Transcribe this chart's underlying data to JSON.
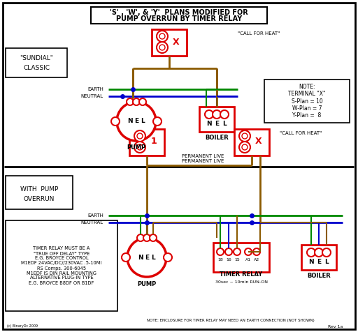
{
  "title_line1": "'S' , 'W', & 'Y'  PLANS MODIFIED FOR",
  "title_line2": "PUMP OVERRUN BY TIMER RELAY",
  "bg_color": "#ffffff",
  "border_color": "#000000",
  "red_color": "#dd0000",
  "green_color": "#008800",
  "blue_color": "#0000cc",
  "brown_color": "#8B5A00",
  "label_sundial": "\"SUNDIAL\"\nCLASSIC",
  "label_pump_overrun": "WITH  PUMP\nOVERRUN",
  "note_text": "NOTE:\nTERMINAL \"X\"\nS-Plan = 10\nW-Plan = 7\nY-Plan =  8",
  "timer_note": "TIMER RELAY MUST BE A\n\"TRUE OFF DELAY\" TYPE\nE.G. BROYCE CONTROL\nM1EDF 24VAC/DC//230VAC .5-10MI\nRS Comps. 300-6045\nM1EDF IS DIN RAIL MOUNTING\nALTERNATIVE PLUG-IN TYPE\nE.G. BROYCE B8DF OR B1DF",
  "bottom_note": "NOTE: ENCLOSURE FOR TIMER RELAY MAY NEED AN EARTH CONNECTION (NOT SHOWN)",
  "rev_note": "Rev 1a",
  "credit": "(c) BinaryDc 2009",
  "call_heat1": "\"CALL FOR HEAT\"",
  "call_heat2": "\"CALL FOR HEAT\"",
  "perm_live": "PERMANENT LIVE",
  "earth_label": "EARTH",
  "neutral_label": "NEUTRAL",
  "earth_label2": "EARTH",
  "neutral_label2": "NEUTRAL",
  "pump_label": "PUMP",
  "boiler_label": "BOILER",
  "timer_label": "TIMER RELAY",
  "timer_sub": "30sec ~ 10min RUN-ON"
}
